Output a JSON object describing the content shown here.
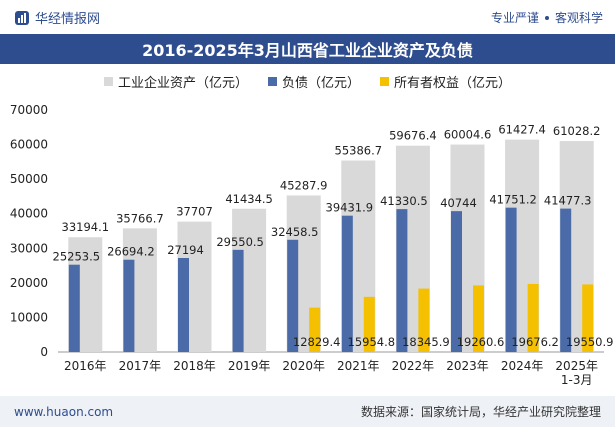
{
  "header": {
    "brand": "华经情报网",
    "tags": [
      "专业严谨",
      "客观科学"
    ]
  },
  "footer": {
    "url": "www.huaon.com",
    "source": "数据来源：国家统计局，华经产业研究院整理"
  },
  "colors": {
    "assets": "#d9d9d9",
    "liabilities": "#4a6aa8",
    "equity": "#f5c000",
    "title_bg": "#2e4d8f"
  },
  "chart_data": {
    "type": "bar",
    "title": "2016-2025年3月山西省工业企业资产及负债",
    "categories": [
      "2016年",
      "2017年",
      "2018年",
      "2019年",
      "2020年",
      "2021年",
      "2022年",
      "2023年",
      "2024年",
      "2025年\n1-3月"
    ],
    "ylim": [
      0,
      70000
    ],
    "yticks": [
      0,
      10000,
      20000,
      30000,
      40000,
      50000,
      60000,
      70000
    ],
    "legend_position": "top",
    "grid": false,
    "series": [
      {
        "name": "工业企业资产（亿元）",
        "values": [
          33194.1,
          35766.7,
          37707,
          41434.5,
          45287.9,
          55386.7,
          59676.4,
          60004.6,
          61427.4,
          61028.2
        ]
      },
      {
        "name": "负债（亿元）",
        "values": [
          25253.5,
          26694.2,
          27194,
          29550.5,
          32458.5,
          39431.9,
          41330.5,
          40744,
          41751.2,
          41477.3
        ]
      },
      {
        "name": "所有者权益（亿元）",
        "values": [
          null,
          null,
          null,
          null,
          12829.4,
          15954.8,
          18345.9,
          19260.6,
          19676.2,
          19550.9
        ]
      }
    ],
    "data_labels": {
      "assets": [
        "33194.1",
        "35766.7",
        "37707",
        "41434.5",
        "45287.9",
        "55386.7",
        "59676.4",
        "60004.6",
        "61427.4",
        "61028.2"
      ],
      "liabilities": [
        "25253.5",
        "26694.2",
        "27194",
        "29550.5",
        "32458.5",
        "39431.9",
        "41330.5",
        "40744",
        "41751.2",
        "41477.3"
      ],
      "equity": [
        "",
        "",
        "",
        "",
        "12829.4",
        "15954.8",
        "18345.9",
        "19260.6",
        "19676.2",
        "19550.9"
      ]
    }
  }
}
